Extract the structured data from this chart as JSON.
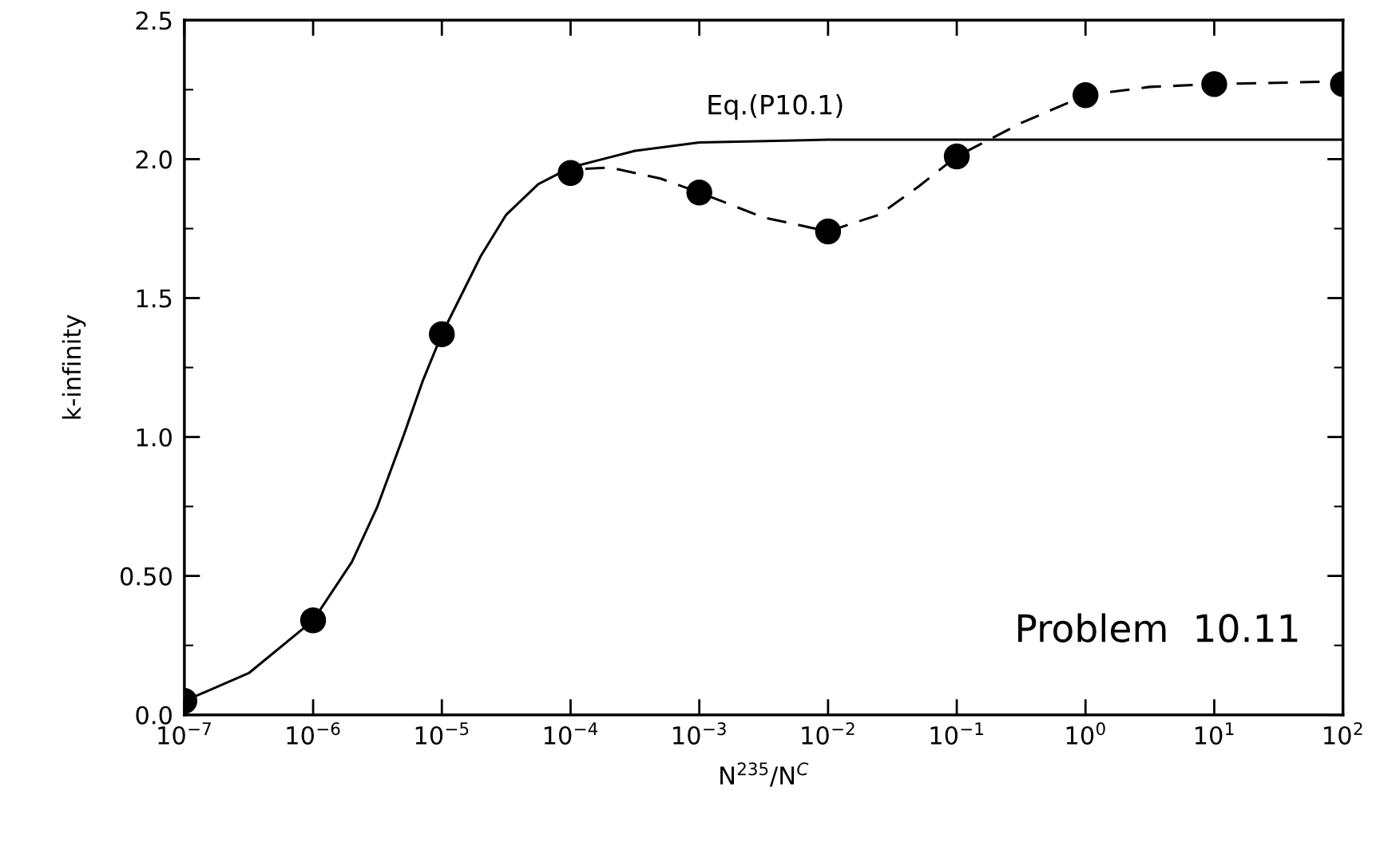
{
  "chart_data": {
    "type": "scatter",
    "xlabel": "N$^{235}$/N$^{C}$",
    "ylabel": "k-infinity",
    "log": "x",
    "xlim": [
      1e-07,
      100
    ],
    "xticks": [
      {
        "value": 1e-07,
        "label": "10$^{−7}$"
      },
      {
        "value": 1e-06,
        "label": "10$^{−6}$"
      },
      {
        "value": 1e-05,
        "label": "10$^{−5}$"
      },
      {
        "value": 0.0001,
        "label": "10$^{−4}$"
      },
      {
        "value": 0.001,
        "label": "10$^{−3}$"
      },
      {
        "value": 0.01,
        "label": "10$^{−2}$"
      },
      {
        "value": 0.1,
        "label": "10$^{−1}$"
      },
      {
        "value": 1,
        "label": "10$^{0}$"
      },
      {
        "value": 10,
        "label": "10$^{1}$"
      },
      {
        "value": 100,
        "label": "10$^{2}$"
      }
    ],
    "ylim": [
      0,
      2.5
    ],
    "yticks": [
      {
        "value": 0,
        "label": "0.0"
      },
      {
        "value": 0.5,
        "label": "0.50"
      },
      {
        "value": 1.0,
        "label": "1.0"
      },
      {
        "value": 1.5,
        "label": "1.5"
      },
      {
        "value": 2.0,
        "label": "2.0"
      },
      {
        "value": 2.5,
        "label": "2.5"
      }
    ],
    "grid": false,
    "series": [
      {
        "type": "line",
        "line_style": "solid",
        "color": "#000000",
        "x": [
          1e-07,
          3.16e-07,
          1e-06,
          2e-06,
          3.16e-06,
          5e-06,
          7.08e-06,
          1e-05,
          2e-05,
          3.16e-05,
          5.62e-05,
          0.0001,
          0.000316,
          0.001,
          0.01,
          100
        ],
        "values": [
          0.05,
          0.15,
          0.34,
          0.55,
          0.75,
          1.0,
          1.2,
          1.37,
          1.65,
          1.8,
          1.91,
          1.97,
          2.03,
          2.06,
          2.07,
          2.07
        ]
      },
      {
        "type": "line",
        "line_style": "dashed",
        "color": "#000000",
        "x": [
          0.00013,
          0.0002,
          0.0005,
          0.001,
          0.00316,
          0.01,
          0.025,
          0.05,
          0.1,
          0.316,
          1,
          3.16,
          10,
          100
        ],
        "values": [
          1.965,
          1.97,
          1.93,
          1.88,
          1.79,
          1.74,
          1.8,
          1.9,
          2.01,
          2.13,
          2.23,
          2.26,
          2.27,
          2.28
        ]
      },
      {
        "marker": "circle",
        "color": "#000000",
        "x": [
          1e-07,
          1e-06,
          1e-05,
          0.0001,
          0.001,
          0.01,
          0.1,
          1,
          10,
          100
        ],
        "values": [
          0.05,
          0.34,
          1.37,
          1.95,
          1.88,
          1.74,
          2.01,
          2.23,
          2.27,
          2.27
        ]
      }
    ],
    "annotations": [
      "Eq.(P10.1)",
      "Problem  10.11"
    ]
  }
}
